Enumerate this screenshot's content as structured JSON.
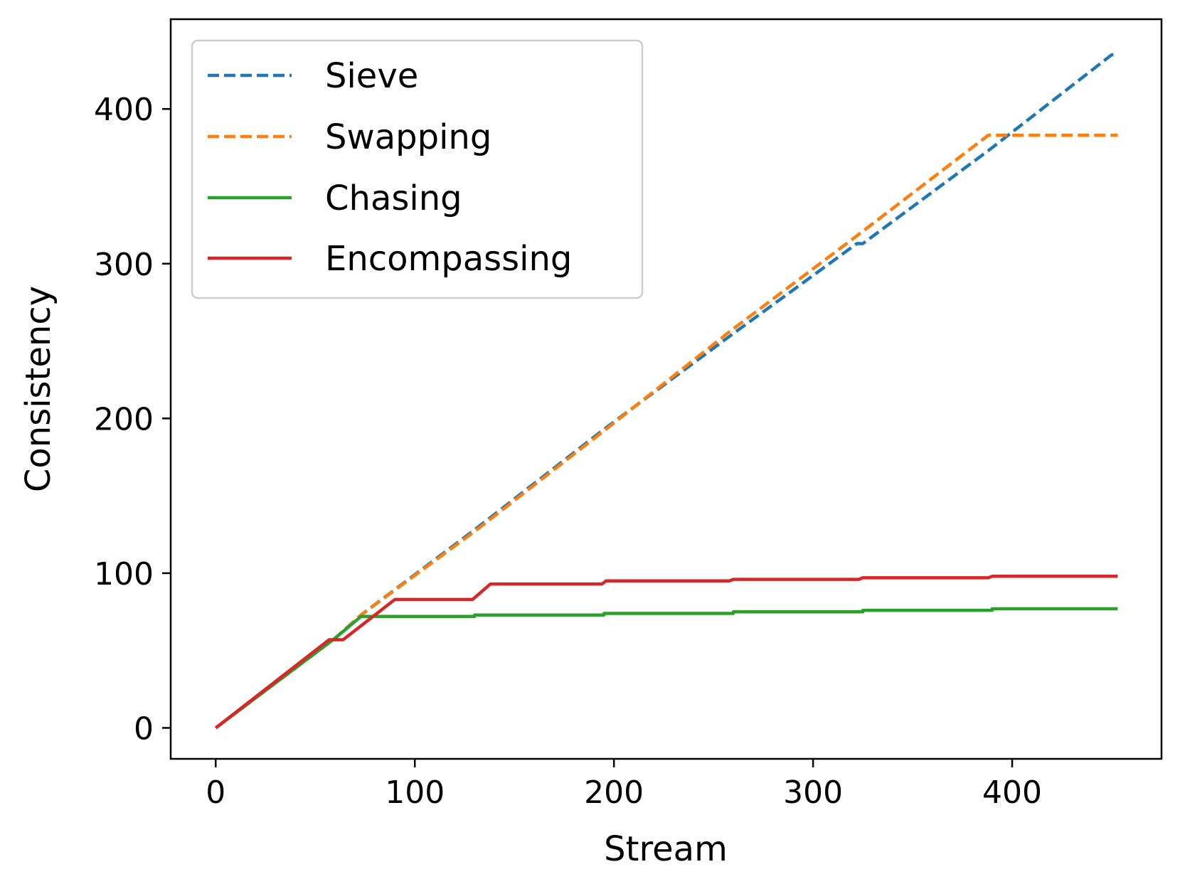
{
  "chart_data": {
    "type": "line",
    "title": "",
    "xlabel": "Stream",
    "ylabel": "Consistency",
    "xlim": [
      -22.6,
      475
    ],
    "ylim": [
      -20,
      458
    ],
    "xticks": [
      0,
      100,
      200,
      300,
      400
    ],
    "yticks": [
      0,
      100,
      200,
      300,
      400
    ],
    "xtick_labels": [
      "0",
      "100",
      "200",
      "300",
      "400"
    ],
    "ytick_labels": [
      "0",
      "100",
      "200",
      "300",
      "400"
    ],
    "grid": false,
    "legend_position": "top-left",
    "series": [
      {
        "name": "Sieve",
        "color": "#1f77b4",
        "style": "dashed",
        "points": [
          [
            0,
            0
          ],
          [
            60,
            58
          ],
          [
            73,
            73
          ],
          [
            130,
            128
          ],
          [
            195,
            193
          ],
          [
            258,
            253
          ],
          [
            322,
            313
          ],
          [
            325,
            313
          ],
          [
            388,
            373
          ],
          [
            450,
            435
          ],
          [
            453,
            435
          ]
        ]
      },
      {
        "name": "Swapping",
        "color": "#ff7f0e",
        "style": "dashed",
        "points": [
          [
            0,
            0
          ],
          [
            60,
            58
          ],
          [
            73,
            73
          ],
          [
            130,
            127
          ],
          [
            195,
            192
          ],
          [
            258,
            256
          ],
          [
            322,
            318
          ],
          [
            388,
            383
          ],
          [
            453,
            383
          ]
        ]
      },
      {
        "name": "Chasing",
        "color": "#2ca02c",
        "style": "solid",
        "points": [
          [
            0,
            0
          ],
          [
            60,
            58
          ],
          [
            73,
            72
          ],
          [
            130,
            72
          ],
          [
            130,
            73
          ],
          [
            195,
            73
          ],
          [
            195,
            74
          ],
          [
            260,
            74
          ],
          [
            260,
            75
          ],
          [
            325,
            75
          ],
          [
            325,
            76
          ],
          [
            390,
            76
          ],
          [
            390,
            77
          ],
          [
            453,
            77
          ]
        ]
      },
      {
        "name": "Encompassing",
        "color": "#d62728",
        "style": "solid",
        "points": [
          [
            0,
            0
          ],
          [
            57,
            57
          ],
          [
            64,
            57
          ],
          [
            90,
            83
          ],
          [
            129,
            83
          ],
          [
            138,
            93
          ],
          [
            194,
            93
          ],
          [
            196,
            95
          ],
          [
            258,
            95
          ],
          [
            260,
            96
          ],
          [
            323,
            96
          ],
          [
            325,
            97
          ],
          [
            388,
            97
          ],
          [
            390,
            98
          ],
          [
            453,
            98
          ]
        ]
      }
    ]
  }
}
